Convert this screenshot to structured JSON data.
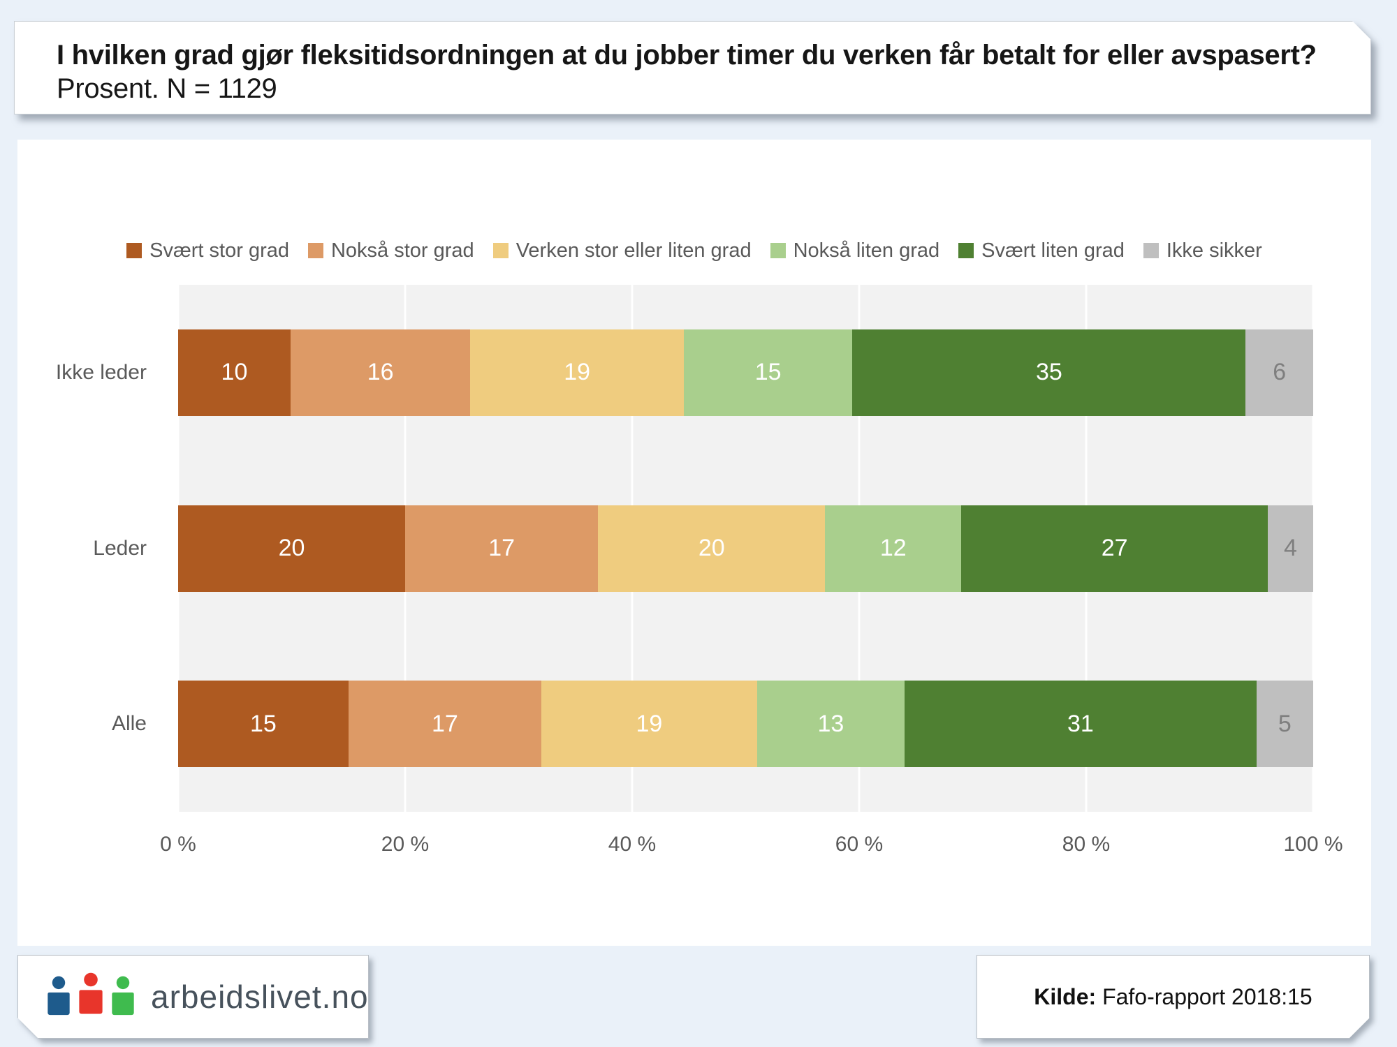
{
  "title": {
    "bold": "I hvilken grad gjør fleksitidsordningen at du jobber timer du verken får betalt for eller avspasert?",
    "regular": "Prosent. N = 1129"
  },
  "chart_data": {
    "type": "bar",
    "orientation": "horizontal",
    "stacked": true,
    "normalized_to_100": true,
    "categories": [
      "Ikke leder",
      "Leder",
      "Alle"
    ],
    "series": [
      {
        "name": "Svært stor grad",
        "color": "#AE5A21",
        "label_color": "#FFFFFF",
        "values": [
          10,
          20,
          15
        ]
      },
      {
        "name": "Nokså stor grad",
        "color": "#DD9A66",
        "label_color": "#FFFFFF",
        "values": [
          16,
          17,
          17
        ]
      },
      {
        "name": "Verken stor eller liten grad",
        "color": "#EFCC7F",
        "label_color": "#FFFFFF",
        "values": [
          19,
          20,
          19
        ]
      },
      {
        "name": "Nokså liten grad",
        "color": "#A9CF8D",
        "label_color": "#FFFFFF",
        "values": [
          15,
          12,
          13
        ]
      },
      {
        "name": "Svært liten grad",
        "color": "#4F8032",
        "label_color": "#FFFFFF",
        "values": [
          35,
          27,
          31
        ]
      },
      {
        "name": "Ikke sikker",
        "color": "#BFBFBF",
        "label_color": "#7F7F7F",
        "values": [
          6,
          4,
          5
        ]
      }
    ],
    "x_ticks": [
      "0 %",
      "20 %",
      "40 %",
      "60 %",
      "80 %",
      "100 %"
    ],
    "x_tick_positions": [
      0,
      20,
      40,
      60,
      80,
      100
    ],
    "xlim": [
      0,
      100
    ],
    "legend_position": "top",
    "plot_background": "#F2F2F2",
    "gridline_color": "#FFFFFF",
    "gridlines": "vertical"
  },
  "footer": {
    "logo_text": "arbeidslivet.no",
    "logo_icon_colors": {
      "left": "#1E5B8C",
      "middle": "#E8352B",
      "right": "#3FBB4E"
    },
    "source_bold": "Kilde:",
    "source_text": "Fafo-rapport 2018:15"
  },
  "palette": {
    "page_background": "#EAF1F9",
    "card_background": "#FFFFFF",
    "axis_text": "#595959",
    "title_text": "#161616"
  }
}
